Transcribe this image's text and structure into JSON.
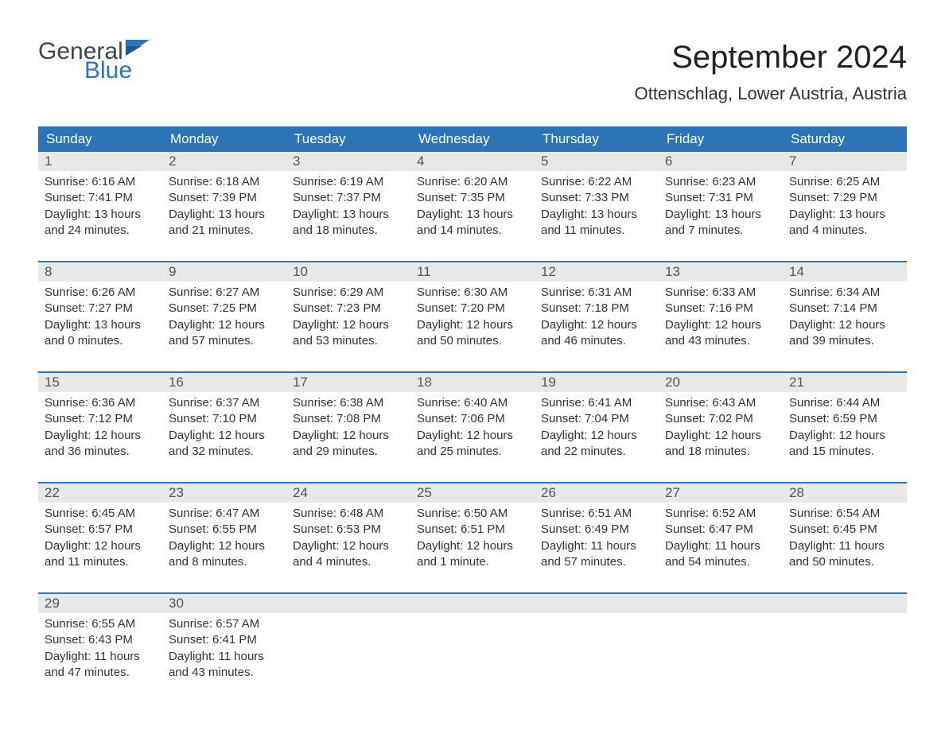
{
  "logo": {
    "text_top": "General",
    "text_bottom": "Blue",
    "top_color": "#444444",
    "bottom_color": "#2b74b8"
  },
  "title": "September 2024",
  "location": "Ottenschlag, Lower Austria, Austria",
  "colors": {
    "header_bg": "#2b74b8",
    "header_text": "#ffffff",
    "daynum_bg": "#e8e8e8",
    "week_border": "#2b74b8",
    "body_text": "#333333",
    "page_bg": "#ffffff"
  },
  "fonts": {
    "title_size_pt": 30,
    "location_size_pt": 16,
    "dayheader_size_pt": 13,
    "daynum_size_pt": 13,
    "body_size_pt": 11
  },
  "day_headers": [
    "Sunday",
    "Monday",
    "Tuesday",
    "Wednesday",
    "Thursday",
    "Friday",
    "Saturday"
  ],
  "weeks": [
    [
      {
        "num": "1",
        "sunrise": "Sunrise: 6:16 AM",
        "sunset": "Sunset: 7:41 PM",
        "daylight1": "Daylight: 13 hours",
        "daylight2": "and 24 minutes."
      },
      {
        "num": "2",
        "sunrise": "Sunrise: 6:18 AM",
        "sunset": "Sunset: 7:39 PM",
        "daylight1": "Daylight: 13 hours",
        "daylight2": "and 21 minutes."
      },
      {
        "num": "3",
        "sunrise": "Sunrise: 6:19 AM",
        "sunset": "Sunset: 7:37 PM",
        "daylight1": "Daylight: 13 hours",
        "daylight2": "and 18 minutes."
      },
      {
        "num": "4",
        "sunrise": "Sunrise: 6:20 AM",
        "sunset": "Sunset: 7:35 PM",
        "daylight1": "Daylight: 13 hours",
        "daylight2": "and 14 minutes."
      },
      {
        "num": "5",
        "sunrise": "Sunrise: 6:22 AM",
        "sunset": "Sunset: 7:33 PM",
        "daylight1": "Daylight: 13 hours",
        "daylight2": "and 11 minutes."
      },
      {
        "num": "6",
        "sunrise": "Sunrise: 6:23 AM",
        "sunset": "Sunset: 7:31 PM",
        "daylight1": "Daylight: 13 hours",
        "daylight2": "and 7 minutes."
      },
      {
        "num": "7",
        "sunrise": "Sunrise: 6:25 AM",
        "sunset": "Sunset: 7:29 PM",
        "daylight1": "Daylight: 13 hours",
        "daylight2": "and 4 minutes."
      }
    ],
    [
      {
        "num": "8",
        "sunrise": "Sunrise: 6:26 AM",
        "sunset": "Sunset: 7:27 PM",
        "daylight1": "Daylight: 13 hours",
        "daylight2": "and 0 minutes."
      },
      {
        "num": "9",
        "sunrise": "Sunrise: 6:27 AM",
        "sunset": "Sunset: 7:25 PM",
        "daylight1": "Daylight: 12 hours",
        "daylight2": "and 57 minutes."
      },
      {
        "num": "10",
        "sunrise": "Sunrise: 6:29 AM",
        "sunset": "Sunset: 7:23 PM",
        "daylight1": "Daylight: 12 hours",
        "daylight2": "and 53 minutes."
      },
      {
        "num": "11",
        "sunrise": "Sunrise: 6:30 AM",
        "sunset": "Sunset: 7:20 PM",
        "daylight1": "Daylight: 12 hours",
        "daylight2": "and 50 minutes."
      },
      {
        "num": "12",
        "sunrise": "Sunrise: 6:31 AM",
        "sunset": "Sunset: 7:18 PM",
        "daylight1": "Daylight: 12 hours",
        "daylight2": "and 46 minutes."
      },
      {
        "num": "13",
        "sunrise": "Sunrise: 6:33 AM",
        "sunset": "Sunset: 7:16 PM",
        "daylight1": "Daylight: 12 hours",
        "daylight2": "and 43 minutes."
      },
      {
        "num": "14",
        "sunrise": "Sunrise: 6:34 AM",
        "sunset": "Sunset: 7:14 PM",
        "daylight1": "Daylight: 12 hours",
        "daylight2": "and 39 minutes."
      }
    ],
    [
      {
        "num": "15",
        "sunrise": "Sunrise: 6:36 AM",
        "sunset": "Sunset: 7:12 PM",
        "daylight1": "Daylight: 12 hours",
        "daylight2": "and 36 minutes."
      },
      {
        "num": "16",
        "sunrise": "Sunrise: 6:37 AM",
        "sunset": "Sunset: 7:10 PM",
        "daylight1": "Daylight: 12 hours",
        "daylight2": "and 32 minutes."
      },
      {
        "num": "17",
        "sunrise": "Sunrise: 6:38 AM",
        "sunset": "Sunset: 7:08 PM",
        "daylight1": "Daylight: 12 hours",
        "daylight2": "and 29 minutes."
      },
      {
        "num": "18",
        "sunrise": "Sunrise: 6:40 AM",
        "sunset": "Sunset: 7:06 PM",
        "daylight1": "Daylight: 12 hours",
        "daylight2": "and 25 minutes."
      },
      {
        "num": "19",
        "sunrise": "Sunrise: 6:41 AM",
        "sunset": "Sunset: 7:04 PM",
        "daylight1": "Daylight: 12 hours",
        "daylight2": "and 22 minutes."
      },
      {
        "num": "20",
        "sunrise": "Sunrise: 6:43 AM",
        "sunset": "Sunset: 7:02 PM",
        "daylight1": "Daylight: 12 hours",
        "daylight2": "and 18 minutes."
      },
      {
        "num": "21",
        "sunrise": "Sunrise: 6:44 AM",
        "sunset": "Sunset: 6:59 PM",
        "daylight1": "Daylight: 12 hours",
        "daylight2": "and 15 minutes."
      }
    ],
    [
      {
        "num": "22",
        "sunrise": "Sunrise: 6:45 AM",
        "sunset": "Sunset: 6:57 PM",
        "daylight1": "Daylight: 12 hours",
        "daylight2": "and 11 minutes."
      },
      {
        "num": "23",
        "sunrise": "Sunrise: 6:47 AM",
        "sunset": "Sunset: 6:55 PM",
        "daylight1": "Daylight: 12 hours",
        "daylight2": "and 8 minutes."
      },
      {
        "num": "24",
        "sunrise": "Sunrise: 6:48 AM",
        "sunset": "Sunset: 6:53 PM",
        "daylight1": "Daylight: 12 hours",
        "daylight2": "and 4 minutes."
      },
      {
        "num": "25",
        "sunrise": "Sunrise: 6:50 AM",
        "sunset": "Sunset: 6:51 PM",
        "daylight1": "Daylight: 12 hours",
        "daylight2": "and 1 minute."
      },
      {
        "num": "26",
        "sunrise": "Sunrise: 6:51 AM",
        "sunset": "Sunset: 6:49 PM",
        "daylight1": "Daylight: 11 hours",
        "daylight2": "and 57 minutes."
      },
      {
        "num": "27",
        "sunrise": "Sunrise: 6:52 AM",
        "sunset": "Sunset: 6:47 PM",
        "daylight1": "Daylight: 11 hours",
        "daylight2": "and 54 minutes."
      },
      {
        "num": "28",
        "sunrise": "Sunrise: 6:54 AM",
        "sunset": "Sunset: 6:45 PM",
        "daylight1": "Daylight: 11 hours",
        "daylight2": "and 50 minutes."
      }
    ],
    [
      {
        "num": "29",
        "sunrise": "Sunrise: 6:55 AM",
        "sunset": "Sunset: 6:43 PM",
        "daylight1": "Daylight: 11 hours",
        "daylight2": "and 47 minutes."
      },
      {
        "num": "30",
        "sunrise": "Sunrise: 6:57 AM",
        "sunset": "Sunset: 6:41 PM",
        "daylight1": "Daylight: 11 hours",
        "daylight2": "and 43 minutes."
      },
      {
        "num": "",
        "sunrise": "",
        "sunset": "",
        "daylight1": "",
        "daylight2": ""
      },
      {
        "num": "",
        "sunrise": "",
        "sunset": "",
        "daylight1": "",
        "daylight2": ""
      },
      {
        "num": "",
        "sunrise": "",
        "sunset": "",
        "daylight1": "",
        "daylight2": ""
      },
      {
        "num": "",
        "sunrise": "",
        "sunset": "",
        "daylight1": "",
        "daylight2": ""
      },
      {
        "num": "",
        "sunrise": "",
        "sunset": "",
        "daylight1": "",
        "daylight2": ""
      }
    ]
  ]
}
